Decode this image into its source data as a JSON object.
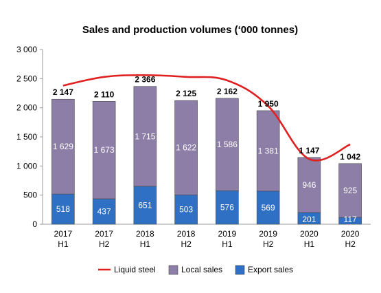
{
  "chart_data": {
    "type": "bar",
    "title": "Sales and production volumes (‘000 tonnes)",
    "categories": [
      [
        "2017",
        "H1"
      ],
      [
        "2017",
        "H2"
      ],
      [
        "2018",
        "H1"
      ],
      [
        "2018",
        "H2"
      ],
      [
        "2019",
        "H1"
      ],
      [
        "2019",
        "H2"
      ],
      [
        "2020",
        "H1"
      ],
      [
        "2020",
        "H2"
      ]
    ],
    "yticks": [
      "0",
      "500",
      "1 000",
      "1 500",
      "2 000",
      "2 500",
      "3 000"
    ],
    "ylim": [
      0,
      3000
    ],
    "stacked": true,
    "series": [
      {
        "name": "Export sales",
        "values": [
          518,
          437,
          651,
          503,
          576,
          569,
          201,
          117
        ],
        "labels": [
          "518",
          "437",
          "651",
          "503",
          "576",
          "569",
          "201",
          "117"
        ],
        "color": "#2f6fc4"
      },
      {
        "name": "Local sales",
        "values": [
          1629,
          1673,
          1715,
          1622,
          1586,
          1381,
          946,
          925
        ],
        "labels": [
          "1 629",
          "1 673",
          "1 715",
          "1 622",
          "1 586",
          "1 381",
          "946",
          "925"
        ],
        "color": "#8c7ea6"
      },
      {
        "name": "Liquid steel",
        "type": "line",
        "values": [
          2380,
          2530,
          2560,
          2530,
          2470,
          2030,
          1120,
          1370
        ],
        "color": "#e02020"
      }
    ],
    "totals": [
      "2 147",
      "2 110",
      "2 366",
      "2 125",
      "2 162",
      "1 950",
      "1 147",
      "1 042"
    ],
    "legend": {
      "position": "bottom",
      "items": [
        "Liquid steel",
        "Local sales",
        "Export sales"
      ]
    },
    "grid": false
  }
}
